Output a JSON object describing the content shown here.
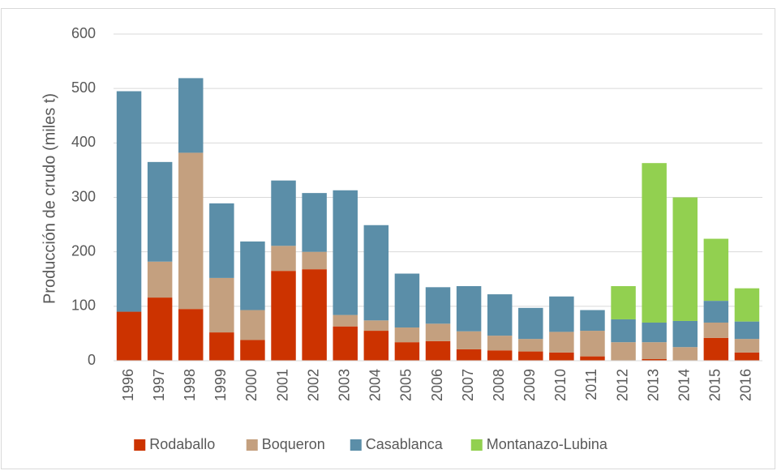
{
  "chart_data": {
    "type": "stacked_bar",
    "y_label": "Producción de crudo (miles t)",
    "categories": [
      "1996",
      "1997",
      "1998",
      "1999",
      "2000",
      "2001",
      "2002",
      "2003",
      "2004",
      "2005",
      "2006",
      "2007",
      "2008",
      "2009",
      "2010",
      "2011",
      "2012",
      "2013",
      "2014",
      "2015",
      "2016"
    ],
    "series": [
      {
        "name": "Rodaballo",
        "color": "#cc3300",
        "values": [
          90,
          116,
          95,
          52,
          38,
          165,
          168,
          63,
          55,
          34,
          36,
          21,
          19,
          17,
          15,
          8,
          0,
          3,
          0,
          42,
          15
        ]
      },
      {
        "name": "Boqueron",
        "color": "#c4a07f",
        "values": [
          0,
          66,
          287,
          100,
          55,
          46,
          32,
          21,
          19,
          27,
          32,
          33,
          27,
          23,
          38,
          47,
          34,
          31,
          25,
          28,
          25
        ]
      },
      {
        "name": "Casablanca",
        "color": "#5b8ea8",
        "values": [
          405,
          183,
          137,
          137,
          126,
          120,
          108,
          229,
          175,
          99,
          67,
          83,
          76,
          57,
          65,
          38,
          42,
          36,
          48,
          40,
          32
        ]
      },
      {
        "name": "Montanazo-Lubina",
        "color": "#92d050",
        "values": [
          0,
          0,
          0,
          0,
          0,
          0,
          0,
          0,
          0,
          0,
          0,
          0,
          0,
          0,
          0,
          0,
          61,
          293,
          227,
          114,
          61
        ]
      }
    ],
    "ylim": [
      0,
      600
    ],
    "yticks": [
      0,
      100,
      200,
      300,
      400,
      500,
      600
    ],
    "grid": true,
    "legend": "bottom"
  }
}
